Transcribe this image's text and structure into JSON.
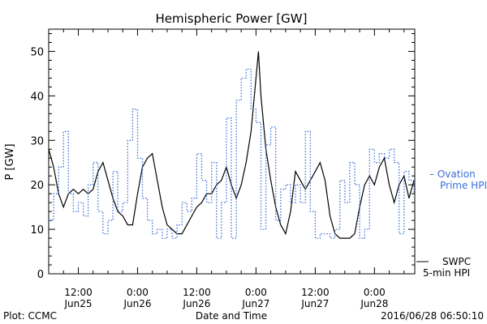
{
  "chart_data": {
    "type": "line",
    "title": "Hemispheric Power [GW]",
    "xlabel": "Date and Time",
    "ylabel": "P [GW]",
    "ylim": [
      0,
      55
    ],
    "xlim": [
      "2016-06-25 06:00",
      "2016-06-28 08:10"
    ],
    "yticks": [
      "0",
      "10",
      "20",
      "30",
      "40",
      "50"
    ],
    "xtick_labels": [
      {
        "time": "12:00",
        "date": "Jun25"
      },
      {
        "time": "0:00",
        "date": "Jun26"
      },
      {
        "time": "12:00",
        "date": "Jun26"
      },
      {
        "time": "0:00",
        "date": "Jun27"
      },
      {
        "time": "12:00",
        "date": "Jun27"
      },
      {
        "time": "0:00",
        "date": "Jun28"
      }
    ],
    "grid": false,
    "series": [
      {
        "name": "SWPC 5-min HPI",
        "style": "solid",
        "color": "#000000",
        "points": [
          [
            "2016-06-25 06:00",
            28
          ],
          [
            "2016-06-25 07:00",
            24
          ],
          [
            "2016-06-25 08:00",
            18
          ],
          [
            "2016-06-25 09:00",
            15
          ],
          [
            "2016-06-25 10:00",
            18
          ],
          [
            "2016-06-25 11:00",
            19
          ],
          [
            "2016-06-25 12:00",
            18
          ],
          [
            "2016-06-25 13:00",
            19
          ],
          [
            "2016-06-25 14:00",
            18
          ],
          [
            "2016-06-25 15:00",
            19
          ],
          [
            "2016-06-25 16:00",
            23
          ],
          [
            "2016-06-25 17:00",
            25
          ],
          [
            "2016-06-25 18:00",
            21
          ],
          [
            "2016-06-25 19:00",
            17
          ],
          [
            "2016-06-25 20:00",
            14
          ],
          [
            "2016-06-25 21:00",
            13
          ],
          [
            "2016-06-25 22:00",
            11
          ],
          [
            "2016-06-25 23:00",
            11
          ],
          [
            "2016-06-26 00:00",
            18
          ],
          [
            "2016-06-26 01:00",
            24
          ],
          [
            "2016-06-26 02:00",
            26
          ],
          [
            "2016-06-26 03:00",
            27
          ],
          [
            "2016-06-26 04:00",
            21
          ],
          [
            "2016-06-26 05:00",
            15
          ],
          [
            "2016-06-26 06:00",
            11
          ],
          [
            "2016-06-26 07:00",
            10
          ],
          [
            "2016-06-26 08:00",
            9
          ],
          [
            "2016-06-26 09:00",
            9
          ],
          [
            "2016-06-26 10:00",
            11
          ],
          [
            "2016-06-26 11:00",
            13
          ],
          [
            "2016-06-26 12:00",
            15
          ],
          [
            "2016-06-26 13:00",
            16
          ],
          [
            "2016-06-26 14:00",
            18
          ],
          [
            "2016-06-26 15:00",
            18
          ],
          [
            "2016-06-26 16:00",
            20
          ],
          [
            "2016-06-26 17:00",
            21
          ],
          [
            "2016-06-26 18:00",
            24
          ],
          [
            "2016-06-26 19:00",
            20
          ],
          [
            "2016-06-26 20:00",
            17
          ],
          [
            "2016-06-26 21:00",
            20
          ],
          [
            "2016-06-26 22:00",
            25
          ],
          [
            "2016-06-26 23:00",
            32
          ],
          [
            "2016-06-27 00:00",
            44
          ],
          [
            "2016-06-27 00:30",
            50
          ],
          [
            "2016-06-27 01:00",
            40
          ],
          [
            "2016-06-27 02:00",
            28
          ],
          [
            "2016-06-27 03:00",
            21
          ],
          [
            "2016-06-27 04:00",
            15
          ],
          [
            "2016-06-27 05:00",
            11
          ],
          [
            "2016-06-27 06:00",
            9
          ],
          [
            "2016-06-27 07:00",
            14
          ],
          [
            "2016-06-27 08:00",
            23
          ],
          [
            "2016-06-27 09:00",
            21
          ],
          [
            "2016-06-27 10:00",
            19
          ],
          [
            "2016-06-27 11:00",
            21
          ],
          [
            "2016-06-27 12:00",
            23
          ],
          [
            "2016-06-27 13:00",
            25
          ],
          [
            "2016-06-27 14:00",
            21
          ],
          [
            "2016-06-27 15:00",
            13
          ],
          [
            "2016-06-27 16:00",
            9
          ],
          [
            "2016-06-27 17:00",
            8
          ],
          [
            "2016-06-27 18:00",
            8
          ],
          [
            "2016-06-27 19:00",
            8
          ],
          [
            "2016-06-27 20:00",
            9
          ],
          [
            "2016-06-27 21:00",
            15
          ],
          [
            "2016-06-27 22:00",
            20
          ],
          [
            "2016-06-27 23:00",
            22
          ],
          [
            "2016-06-28 00:00",
            20
          ],
          [
            "2016-06-28 01:00",
            24
          ],
          [
            "2016-06-28 02:00",
            26
          ],
          [
            "2016-06-28 03:00",
            20
          ],
          [
            "2016-06-28 04:00",
            16
          ],
          [
            "2016-06-28 05:00",
            20
          ],
          [
            "2016-06-28 06:00",
            22
          ],
          [
            "2016-06-28 07:00",
            17
          ],
          [
            "2016-06-28 08:00",
            21
          ]
        ]
      },
      {
        "name": "Ovation Prime HPI",
        "style": "dotted",
        "color": "#3a6fd8",
        "points": [
          [
            "2016-06-25 06:00",
            12
          ],
          [
            "2016-06-25 07:00",
            18
          ],
          [
            "2016-06-25 08:00",
            24
          ],
          [
            "2016-06-25 09:00",
            32
          ],
          [
            "2016-06-25 10:00",
            18
          ],
          [
            "2016-06-25 11:00",
            14
          ],
          [
            "2016-06-25 12:00",
            16
          ],
          [
            "2016-06-25 13:00",
            13
          ],
          [
            "2016-06-25 14:00",
            20
          ],
          [
            "2016-06-25 15:00",
            25
          ],
          [
            "2016-06-25 16:00",
            14
          ],
          [
            "2016-06-25 17:00",
            9
          ],
          [
            "2016-06-25 18:00",
            12
          ],
          [
            "2016-06-25 19:00",
            23
          ],
          [
            "2016-06-25 20:00",
            14
          ],
          [
            "2016-06-25 21:00",
            16
          ],
          [
            "2016-06-25 22:00",
            30
          ],
          [
            "2016-06-25 23:00",
            37
          ],
          [
            "2016-06-26 00:00",
            26
          ],
          [
            "2016-06-26 01:00",
            17
          ],
          [
            "2016-06-26 02:00",
            12
          ],
          [
            "2016-06-26 03:00",
            9
          ],
          [
            "2016-06-26 04:00",
            10
          ],
          [
            "2016-06-26 05:00",
            8
          ],
          [
            "2016-06-26 06:00",
            10
          ],
          [
            "2016-06-26 07:00",
            8
          ],
          [
            "2016-06-26 08:00",
            11
          ],
          [
            "2016-06-26 09:00",
            16
          ],
          [
            "2016-06-26 10:00",
            14
          ],
          [
            "2016-06-26 11:00",
            17
          ],
          [
            "2016-06-26 12:00",
            27
          ],
          [
            "2016-06-26 13:00",
            21
          ],
          [
            "2016-06-26 14:00",
            16
          ],
          [
            "2016-06-26 15:00",
            25
          ],
          [
            "2016-06-26 16:00",
            8
          ],
          [
            "2016-06-26 17:00",
            16
          ],
          [
            "2016-06-26 18:00",
            35
          ],
          [
            "2016-06-26 19:00",
            8
          ],
          [
            "2016-06-26 20:00",
            39
          ],
          [
            "2016-06-26 21:00",
            44
          ],
          [
            "2016-06-26 22:00",
            46
          ],
          [
            "2016-06-26 23:00",
            37
          ],
          [
            "2016-06-27 00:00",
            34
          ],
          [
            "2016-06-27 01:00",
            10
          ],
          [
            "2016-06-27 02:00",
            29
          ],
          [
            "2016-06-27 03:00",
            33
          ],
          [
            "2016-06-27 04:00",
            12
          ],
          [
            "2016-06-27 05:00",
            19
          ],
          [
            "2016-06-27 06:00",
            20
          ],
          [
            "2016-06-27 07:00",
            16
          ],
          [
            "2016-06-27 08:00",
            20
          ],
          [
            "2016-06-27 09:00",
            16
          ],
          [
            "2016-06-27 10:00",
            32
          ],
          [
            "2016-06-27 11:00",
            14
          ],
          [
            "2016-06-27 12:00",
            8
          ],
          [
            "2016-06-27 13:00",
            9
          ],
          [
            "2016-06-27 14:00",
            9
          ],
          [
            "2016-06-27 15:00",
            8
          ],
          [
            "2016-06-27 16:00",
            10
          ],
          [
            "2016-06-27 17:00",
            21
          ],
          [
            "2016-06-27 18:00",
            16
          ],
          [
            "2016-06-27 19:00",
            25
          ],
          [
            "2016-06-27 20:00",
            20
          ],
          [
            "2016-06-27 21:00",
            8
          ],
          [
            "2016-06-27 22:00",
            10
          ],
          [
            "2016-06-27 23:00",
            28
          ],
          [
            "2016-06-28 00:00",
            25
          ],
          [
            "2016-06-28 01:00",
            27
          ],
          [
            "2016-06-28 02:00",
            26
          ],
          [
            "2016-06-28 03:00",
            28
          ],
          [
            "2016-06-28 04:00",
            25
          ],
          [
            "2016-06-28 05:00",
            9
          ],
          [
            "2016-06-28 06:00",
            23
          ],
          [
            "2016-06-28 07:00",
            21
          ],
          [
            "2016-06-28 08:00",
            18
          ]
        ]
      }
    ],
    "legend": [
      {
        "line1": "– Ovation",
        "line2": "Prime HPI",
        "color": "#3a6fd8"
      },
      {
        "line1": "SWPC",
        "line2": "5-min HPI",
        "color": "#000000"
      }
    ],
    "footer_left": "Plot: CCMC",
    "footer_right": "2016/06/28 06:50:10"
  }
}
